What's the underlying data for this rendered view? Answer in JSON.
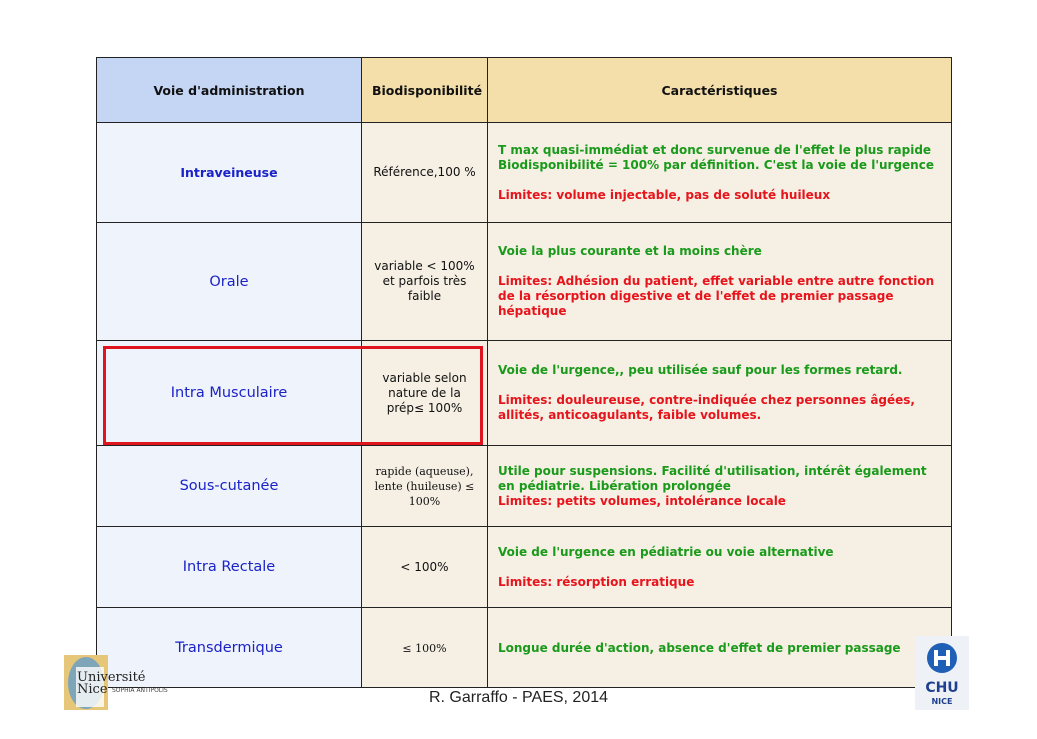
{
  "headers": [
    "Voie d'administration",
    "Biodisponibilité",
    "Caractéristiques"
  ],
  "rows": [
    {
      "voie": "Intraveineuse",
      "bio": "Référence,100 %",
      "green": [
        "T max quasi-immédiat et donc survenue de l'effet le plus rapide",
        "Biodisponibilité = 100% par définition. C'est la voie de l'urgence"
      ],
      "red": "Limites: volume injectable, pas de soluté huileux"
    },
    {
      "voie": "Orale",
      "bio": "variable < 100% et parfois très faible",
      "green": [
        "Voie la plus courante et la moins chère"
      ],
      "red": "Limites: Adhésion du patient, effet variable entre autre fonction de la résorption digestive et de l'effet de premier passage hépatique"
    },
    {
      "voie": "Intra Musculaire",
      "bio": "variable selon nature de la prép≤ 100%",
      "green": [
        "Voie de l'urgence,, peu utilisée sauf pour les formes retard."
      ],
      "red": "Limites: douleureuse, contre-indiquée chez personnes âgées, allités, anticoagulants, faible volumes."
    },
    {
      "voie": "Sous-cutanée",
      "bio": "rapide (aqueuse), lente (huileuse) ≤ 100%",
      "green": [
        "Utile pour suspensions. Facilité d'utilisation, intérêt également en pédiatrie. Libération prolongée"
      ],
      "red": "Limites: petits volumes, intolérance locale"
    },
    {
      "voie": "Intra Rectale",
      "bio": "< 100%",
      "green": [
        "Voie de l'urgence en pédiatrie ou voie alternative"
      ],
      "red": "Limites: résorption erratique"
    },
    {
      "voie": "Transdermique",
      "bio": "≤ 100%",
      "green": [
        "Longue durée d'action, absence d'effet de premier passage"
      ],
      "red": ""
    }
  ],
  "footer": "R. Garraffo - PAES, 2014",
  "logos": {
    "left": "Université Nice Sophia Antipolis",
    "right": "CHU NICE"
  },
  "colors": {
    "highlight": "#e0141c",
    "green": "#1a9a1a",
    "red": "#e8141c",
    "blue": "#1a22c8"
  }
}
